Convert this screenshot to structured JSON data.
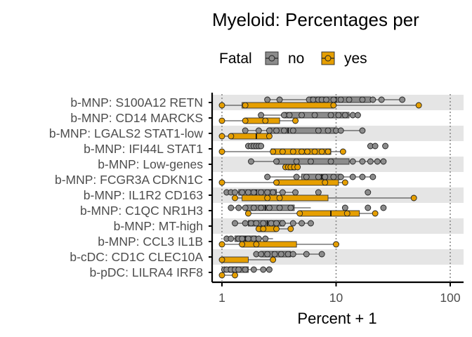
{
  "chart_data": {
    "type": "boxplot",
    "title": "Myeloid: Percentages per",
    "xlabel": "Percent + 1",
    "ylabel": "",
    "x_scale": "log10",
    "xlim": [
      1,
      100
    ],
    "x_ticks": [
      1,
      10,
      100
    ],
    "x_tick_labels": [
      "1",
      "10",
      "100"
    ],
    "grid": "dotted vertical at 1, 10, 100; alternating grey row bands",
    "legend": {
      "title": "Fatal",
      "position": "top",
      "entries": [
        {
          "label": "no",
          "color": "#8c8c8c"
        },
        {
          "label": "yes",
          "color": "#e69f00"
        }
      ]
    },
    "categories": [
      "b-MNP: S100A12 RETN",
      "b-MNP: CD14 MARCKS",
      "b-MNP: LGALS2 STAT1-low",
      "b-MNP: IFI44L STAT1",
      "b-MNP: Low-genes",
      "b-MNP: FCGR3A CDKN1C",
      "b-MNP: IL1R2 CD163",
      "b-MNP: C1QC NR1H3",
      "b-MNP: MT-high",
      "b-MNP: CCL3 IL1B",
      "b-cDC: CD1C CLEC10A",
      "b-pDC: LILRA4 IRF8"
    ],
    "series": [
      {
        "name": "no",
        "color": "#8c8c8c",
        "boxes": [
          {
            "whisker_low": 2.5,
            "q1": 6.0,
            "median": 10.0,
            "q3": 20.0,
            "whisker_high": 40.0,
            "outliers": [],
            "points": [
              2.5,
              3.2,
              5.8,
              6.3,
              7.0,
              7.5,
              8.2,
              9.5,
              11.0,
              13.0,
              17.0,
              21.0,
              25.0,
              38.0
            ]
          },
          {
            "whisker_low": 2.2,
            "q1": 3.5,
            "median": 9.0,
            "q3": 13.0,
            "whisker_high": 16.0,
            "outliers": [],
            "points": [
              2.2,
              3.5,
              3.9,
              5.0,
              6.5,
              9.0,
              10.5,
              12.0,
              14.0,
              15.5
            ]
          },
          {
            "whisker_low": 1.6,
            "q1": 2.6,
            "median": 3.8,
            "q3": 10.0,
            "whisker_high": 17.0,
            "outliers": [],
            "points": [
              1.6,
              2.1,
              2.6,
              3.0,
              3.5,
              4.2,
              7.0,
              8.5,
              10.0,
              11.0,
              17.0
            ]
          },
          {
            "whisker_low": 1.7,
            "q1": 1.8,
            "median": 2.0,
            "q3": 2.2,
            "whisker_high": 2.3,
            "outliers": [
              20.0,
              22.0,
              27.0
            ],
            "points": [
              1.7,
              1.8,
              1.9,
              2.0,
              2.1,
              2.2
            ]
          },
          {
            "whisker_low": 1.8,
            "q1": 3.0,
            "median": 6.0,
            "q3": 13.0,
            "whisker_high": 26.0,
            "outliers": [],
            "points": [
              1.8,
              3.0,
              4.5,
              6.0,
              9.0,
              14.0,
              17.0,
              20.0,
              23.0,
              26.0
            ]
          },
          {
            "whisker_low": 2.5,
            "q1": 5.0,
            "median": 7.5,
            "q3": 11.0,
            "whisker_high": 21.0,
            "outliers": [],
            "points": [
              2.5,
              4.5,
              5.5,
              7.0,
              8.0,
              9.5,
              11.0,
              14.0,
              17.0,
              21.0
            ]
          },
          {
            "whisker_low": 1.1,
            "q1": 1.4,
            "median": 2.0,
            "q3": 3.0,
            "whisker_high": 4.5,
            "outliers": [
              7.0,
              19.0
            ],
            "points": [
              1.1,
              1.2,
              1.3,
              1.5,
              1.7,
              1.9,
              2.2,
              2.5,
              2.8,
              3.4,
              4.4
            ]
          },
          {
            "whisker_low": 1.2,
            "q1": 1.6,
            "median": 2.4,
            "q3": 4.3,
            "whisker_high": 6.0,
            "outliers": [
              12.0,
              19.0,
              26.0
            ],
            "points": [
              1.2,
              1.4,
              1.6,
              1.9,
              2.2,
              2.6,
              3.2,
              4.0
            ]
          },
          {
            "whisker_low": 1.3,
            "q1": 1.7,
            "median": 2.5,
            "q3": 3.5,
            "whisker_high": 6.0,
            "outliers": [],
            "points": [
              1.3,
              1.6,
              1.8,
              2.0,
              2.3,
              2.7,
              3.0,
              3.4,
              4.2,
              5.0,
              6.0
            ]
          },
          {
            "whisker_low": 1.1,
            "q1": 1.3,
            "median": 1.6,
            "q3": 2.0,
            "whisker_high": 2.8,
            "outliers": [],
            "points": [
              1.1,
              1.2,
              1.4,
              1.5,
              1.7,
              1.9,
              2.1,
              2.4
            ]
          },
          {
            "whisker_low": 2.0,
            "q1": 2.2,
            "median": 2.8,
            "q3": 4.0,
            "whisker_high": 7.5,
            "outliers": [],
            "points": [
              2.0,
              2.2,
              2.5,
              2.9,
              3.3,
              3.8,
              4.2,
              5.5,
              7.5
            ]
          },
          {
            "whisker_low": 1.0,
            "q1": 1.15,
            "median": 1.3,
            "q3": 1.7,
            "whisker_high": 2.6,
            "outliers": [],
            "points": [
              1.05,
              1.1,
              1.2,
              1.3,
              1.4,
              1.6,
              1.9,
              2.3,
              2.6
            ]
          }
        ]
      },
      {
        "name": "yes",
        "color": "#e69f00",
        "boxes": [
          {
            "whisker_low": 1.0,
            "q1": 1.5,
            "median": 9.5,
            "q3": 9.5,
            "whisker_high": 53.0,
            "outliers": [],
            "points": [
              1.0,
              1.6,
              9.5,
              53.0
            ]
          },
          {
            "whisker_low": 1.0,
            "q1": 1.6,
            "median": 2.4,
            "q3": 3.2,
            "whisker_high": 4.5,
            "outliers": [],
            "points": [
              1.0,
              1.6,
              2.4,
              4.4
            ]
          },
          {
            "whisker_low": 1.0,
            "q1": 1.2,
            "median": 2.0,
            "q3": 2.6,
            "whisker_high": 2.6,
            "outliers": [],
            "points": [
              1.0,
              1.2,
              2.6
            ]
          },
          {
            "whisker_low": 1.0,
            "q1": 2.7,
            "median": 5.0,
            "q3": 9.0,
            "whisker_high": 11.5,
            "outliers": [],
            "points": [
              1.0,
              2.8,
              3.4,
              4.2,
              5.0,
              5.6,
              6.5,
              7.5,
              8.5,
              11.5
            ]
          },
          {
            "whisker_low": 3.6,
            "q1": 3.8,
            "median": 4.1,
            "q3": 4.4,
            "whisker_high": 4.6,
            "outliers": [],
            "points": [
              3.6,
              3.8,
              4.0,
              4.3,
              4.6
            ]
          },
          {
            "whisker_low": 1.0,
            "q1": 3.0,
            "median": 8.0,
            "q3": 10.5,
            "whisker_high": 12.0,
            "outliers": [],
            "points": [
              1.0,
              3.0,
              8.0,
              12.0
            ]
          },
          {
            "whisker_low": 1.3,
            "q1": 1.5,
            "median": 2.5,
            "q3": 8.5,
            "whisker_high": 48.0,
            "outliers": [],
            "points": [
              1.3,
              2.5,
              3.2,
              48.0
            ]
          },
          {
            "whisker_low": 1.7,
            "q1": 4.8,
            "median": 9.0,
            "q3": 16.0,
            "whisker_high": 22.0,
            "outliers": [],
            "points": [
              1.7,
              4.8,
              12.5,
              22.0
            ]
          },
          {
            "whisker_low": 2.0,
            "q1": 2.1,
            "median": 2.3,
            "q3": 3.0,
            "whisker_high": 4.0,
            "outliers": [],
            "points": [
              2.1,
              2.3,
              3.0,
              4.0
            ]
          },
          {
            "whisker_low": 1.0,
            "q1": 1.5,
            "median": 2.0,
            "q3": 4.5,
            "whisker_high": 10.0,
            "outliers": [],
            "points": [
              1.0,
              1.5,
              2.0,
              10.0
            ]
          },
          {
            "whisker_low": 1.0,
            "q1": 1.0,
            "median": 1.0,
            "q3": 1.7,
            "whisker_high": 2.8,
            "outliers": [],
            "points": [
              1.0,
              2.8
            ]
          },
          {
            "whisker_low": 1.0,
            "q1": 1.0,
            "median": 1.0,
            "q3": 1.0,
            "whisker_high": 1.3,
            "outliers": [],
            "points": [
              1.0,
              1.3
            ]
          }
        ]
      }
    ]
  }
}
